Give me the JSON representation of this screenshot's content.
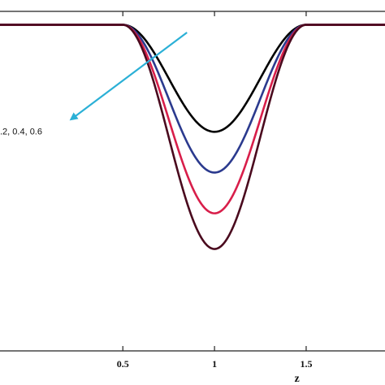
{
  "chart_data": {
    "type": "line",
    "xlabel": "z",
    "xlim": [
      -0.17,
      1.93
    ],
    "ylim": [
      -1.28,
      0.04
    ],
    "x_ticks": [
      {
        "value": 0.5,
        "label": "0.5"
      },
      {
        "value": 1,
        "label": "1"
      },
      {
        "value": 1.5,
        "label": "1.5"
      }
    ],
    "grid": false,
    "curve_model": {
      "kind": "cosine-squared dip",
      "baseline": 0,
      "x_start": 0.5,
      "x_end": 1.5,
      "exponent": 2
    },
    "series": [
      {
        "color": "#000000",
        "min": -0.42
      },
      {
        "color": "#2b3a8e",
        "min": -0.58
      },
      {
        "color": "#d81e4a",
        "min": -0.74
      },
      {
        "color": "#4a0a1e",
        "min": -0.88
      }
    ],
    "annotation": {
      "text": ".2, 0.4, 0.6",
      "arrow_color": "#2bb0d6",
      "arrow_from": [
        0.85,
        -0.03
      ],
      "arrow_to": [
        0.22,
        -0.37
      ],
      "text_at": [
        -0.17,
        -0.43
      ]
    }
  }
}
